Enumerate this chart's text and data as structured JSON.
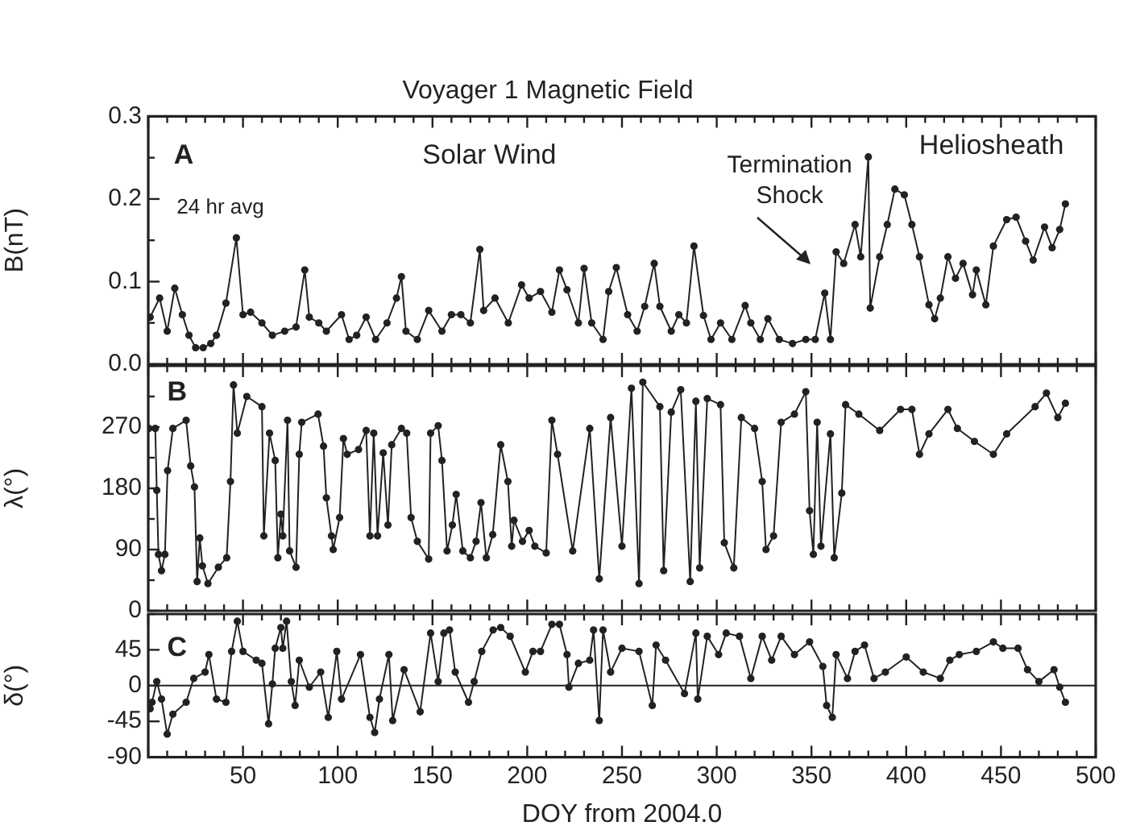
{
  "chart_data": [
    {
      "type": "line",
      "title": "Voyager 1 Magnetic Field",
      "ylabel": "B(nT)",
      "marker": "circle",
      "line_style": "solid",
      "tick_labels": "y",
      "xlim": [
        0,
        500
      ],
      "xticks": [
        {
          "value": 0,
          "label": null
        },
        {
          "value": 10,
          "label": null
        },
        {
          "value": 20,
          "label": null
        },
        {
          "value": 30,
          "label": null
        },
        {
          "value": 40,
          "label": null
        },
        {
          "value": 50,
          "label": null
        },
        {
          "value": 60,
          "label": null
        },
        {
          "value": 70,
          "label": null
        },
        {
          "value": 80,
          "label": null
        },
        {
          "value": 90,
          "label": null
        },
        {
          "value": 100,
          "label": null
        },
        {
          "value": 110,
          "label": null
        },
        {
          "value": 120,
          "label": null
        },
        {
          "value": 130,
          "label": null
        },
        {
          "value": 140,
          "label": null
        },
        {
          "value": 150,
          "label": null
        },
        {
          "value": 160,
          "label": null
        },
        {
          "value": 170,
          "label": null
        },
        {
          "value": 180,
          "label": null
        },
        {
          "value": 190,
          "label": null
        },
        {
          "value": 200,
          "label": null
        },
        {
          "value": 210,
          "label": null
        },
        {
          "value": 220,
          "label": null
        },
        {
          "value": 230,
          "label": null
        },
        {
          "value": 240,
          "label": null
        },
        {
          "value": 250,
          "label": null
        },
        {
          "value": 260,
          "label": null
        },
        {
          "value": 270,
          "label": null
        },
        {
          "value": 280,
          "label": null
        },
        {
          "value": 290,
          "label": null
        },
        {
          "value": 300,
          "label": null
        },
        {
          "value": 310,
          "label": null
        },
        {
          "value": 320,
          "label": null
        },
        {
          "value": 330,
          "label": null
        },
        {
          "value": 340,
          "label": null
        },
        {
          "value": 350,
          "label": null
        },
        {
          "value": 360,
          "label": null
        },
        {
          "value": 370,
          "label": null
        },
        {
          "value": 380,
          "label": null
        },
        {
          "value": 390,
          "label": null
        },
        {
          "value": 400,
          "label": null
        },
        {
          "value": 410,
          "label": null
        },
        {
          "value": 420,
          "label": null
        },
        {
          "value": 430,
          "label": null
        },
        {
          "value": 440,
          "label": null
        },
        {
          "value": 450,
          "label": null
        },
        {
          "value": 460,
          "label": null
        },
        {
          "value": 470,
          "label": null
        },
        {
          "value": 480,
          "label": null
        },
        {
          "value": 490,
          "label": null
        },
        {
          "value": 500,
          "label": null
        }
      ],
      "ylim": [
        0,
        0.3
      ],
      "yticks": [
        {
          "value": 0,
          "label": "0.0"
        },
        {
          "value": 0.05,
          "label": null
        },
        0.1,
        {
          "value": 0.15,
          "label": null
        },
        0.2,
        {
          "value": 0.25,
          "label": null
        },
        0.3
      ],
      "annotations": [
        "A",
        "Solar Wind",
        "Heliosheath",
        "24 hr avg",
        "Termination Shock"
      ],
      "series": [
        {
          "color": "#222222",
          "x": [
            1,
            6,
            10,
            14,
            18,
            21.5,
            25,
            29,
            33,
            36,
            41,
            46.5,
            50,
            54,
            60,
            65.5,
            72,
            78,
            82.6,
            85,
            90,
            94,
            102,
            106,
            110,
            115,
            120,
            126,
            131,
            133.6,
            136,
            142,
            148,
            155,
            160,
            165,
            170,
            175,
            177,
            183,
            190,
            197,
            201,
            207,
            213,
            217,
            221,
            227,
            230,
            234,
            240,
            243,
            247,
            253,
            258,
            262,
            267,
            270,
            276,
            280,
            284,
            288,
            293,
            297,
            302,
            308,
            315,
            318,
            323,
            327,
            333,
            340,
            347,
            352,
            357,
            360,
            363,
            367,
            373,
            376,
            380,
            381,
            386,
            390,
            394,
            399,
            403,
            407,
            412,
            415,
            418,
            422,
            426,
            430,
            435,
            437,
            442,
            446,
            453,
            458,
            463,
            467,
            473,
            477,
            481,
            484
          ],
          "values": [
            0.057,
            0.08,
            0.04,
            0.092,
            0.06,
            0.035,
            0.02,
            0.02,
            0.025,
            0.035,
            0.074,
            0.153,
            0.06,
            0.063,
            0.05,
            0.035,
            0.04,
            0.045,
            0.114,
            0.057,
            0.05,
            0.04,
            0.06,
            0.03,
            0.035,
            0.057,
            0.03,
            0.05,
            0.08,
            0.106,
            0.04,
            0.03,
            0.065,
            0.04,
            0.06,
            0.06,
            0.05,
            0.139,
            0.065,
            0.08,
            0.05,
            0.096,
            0.08,
            0.088,
            0.063,
            0.114,
            0.09,
            0.05,
            0.116,
            0.05,
            0.03,
            0.088,
            0.117,
            0.06,
            0.04,
            0.07,
            0.122,
            0.07,
            0.04,
            0.06,
            0.05,
            0.143,
            0.059,
            0.03,
            0.05,
            0.03,
            0.071,
            0.05,
            0.03,
            0.055,
            0.03,
            0.025,
            0.03,
            0.03,
            0.086,
            0.03,
            0.136,
            0.122,
            0.169,
            0.13,
            0.251,
            0.068,
            0.13,
            0.169,
            0.212,
            0.205,
            0.169,
            0.13,
            0.072,
            0.055,
            0.08,
            0.13,
            0.104,
            0.122,
            0.084,
            0.114,
            0.072,
            0.143,
            0.175,
            0.178,
            0.149,
            0.126,
            0.166,
            0.141,
            0.163,
            0.194
          ]
        }
      ]
    },
    {
      "type": "line",
      "ylabel": "λ(°)",
      "marker": "circle",
      "line_style": "solid",
      "tick_labels": "y",
      "xlim": [
        0,
        500
      ],
      "xticks": [
        {
          "value": 0,
          "label": null
        },
        {
          "value": 10,
          "label": null
        },
        {
          "value": 20,
          "label": null
        },
        {
          "value": 30,
          "label": null
        },
        {
          "value": 40,
          "label": null
        },
        {
          "value": 50,
          "label": null
        },
        {
          "value": 60,
          "label": null
        },
        {
          "value": 70,
          "label": null
        },
        {
          "value": 80,
          "label": null
        },
        {
          "value": 90,
          "label": null
        },
        {
          "value": 100,
          "label": null
        },
        {
          "value": 110,
          "label": null
        },
        {
          "value": 120,
          "label": null
        },
        {
          "value": 130,
          "label": null
        },
        {
          "value": 140,
          "label": null
        },
        {
          "value": 150,
          "label": null
        },
        {
          "value": 160,
          "label": null
        },
        {
          "value": 170,
          "label": null
        },
        {
          "value": 180,
          "label": null
        },
        {
          "value": 190,
          "label": null
        },
        {
          "value": 200,
          "label": null
        },
        {
          "value": 210,
          "label": null
        },
        {
          "value": 220,
          "label": null
        },
        {
          "value": 230,
          "label": null
        },
        {
          "value": 240,
          "label": null
        },
        {
          "value": 250,
          "label": null
        },
        {
          "value": 260,
          "label": null
        },
        {
          "value": 270,
          "label": null
        },
        {
          "value": 280,
          "label": null
        },
        {
          "value": 290,
          "label": null
        },
        {
          "value": 300,
          "label": null
        },
        {
          "value": 310,
          "label": null
        },
        {
          "value": 320,
          "label": null
        },
        {
          "value": 330,
          "label": null
        },
        {
          "value": 340,
          "label": null
        },
        {
          "value": 350,
          "label": null
        },
        {
          "value": 360,
          "label": null
        },
        {
          "value": 370,
          "label": null
        },
        {
          "value": 380,
          "label": null
        },
        {
          "value": 390,
          "label": null
        },
        {
          "value": 400,
          "label": null
        },
        {
          "value": 410,
          "label": null
        },
        {
          "value": 420,
          "label": null
        },
        {
          "value": 430,
          "label": null
        },
        {
          "value": 440,
          "label": null
        },
        {
          "value": 450,
          "label": null
        },
        {
          "value": 460,
          "label": null
        },
        {
          "value": 470,
          "label": null
        },
        {
          "value": 480,
          "label": null
        },
        {
          "value": 490,
          "label": null
        },
        {
          "value": 500,
          "label": null
        }
      ],
      "ylim": [
        0,
        360
      ],
      "yticks": [
        0,
        {
          "value": 45,
          "label": null
        },
        90,
        {
          "value": 135,
          "label": null
        },
        180,
        {
          "value": 225,
          "label": null
        },
        270,
        {
          "value": 315,
          "label": null
        },
        {
          "value": 360,
          "label": null
        }
      ],
      "annotations": [
        "B"
      ],
      "series": [
        {
          "color": "#222222",
          "x": [
            0.3,
            3.7,
            4.5,
            5.4,
            7,
            8.8,
            10.2,
            13,
            20,
            22.4,
            24.4,
            25.8,
            27.2,
            28.6,
            31.5,
            37,
            41.4,
            43.4,
            45,
            47,
            52,
            60,
            61,
            64,
            67,
            68.4,
            70,
            71,
            73.5,
            74.6,
            78,
            79.7,
            81,
            89.6,
            92.5,
            94,
            96.7,
            97.6,
            101,
            103,
            105,
            111,
            115,
            117,
            119,
            121,
            124,
            126.5,
            128.5,
            133.6,
            136.4,
            138.7,
            142,
            148,
            149,
            153,
            155,
            157.7,
            160.5,
            162.5,
            166,
            170,
            173,
            175.6,
            178.4,
            181.8,
            186,
            189.8,
            191.8,
            193,
            197.5,
            201,
            204,
            210,
            213,
            216,
            224,
            233,
            238,
            244,
            250,
            255,
            259,
            261,
            270,
            272,
            276,
            281,
            286,
            289,
            291,
            295,
            302,
            304,
            309,
            313,
            320,
            324,
            326,
            330,
            334,
            341,
            347,
            349,
            351,
            353,
            355,
            360,
            362,
            366,
            368,
            375,
            386,
            397,
            403,
            407,
            412,
            422,
            427,
            436,
            446,
            453,
            468,
            474,
            480,
            484
          ],
          "values": [
            268,
            268,
            177,
            83,
            59,
            83,
            206,
            268,
            280,
            213,
            182,
            43,
            107,
            66,
            40,
            64,
            78,
            190,
            332,
            261,
            315,
            300,
            110,
            261,
            221,
            78,
            142,
            110,
            280,
            88,
            64,
            230,
            277,
            289,
            242,
            166,
            110,
            90,
            137,
            253,
            230,
            237,
            265,
            110,
            261,
            110,
            232,
            126,
            244,
            268,
            261,
            137,
            102,
            76,
            261,
            272,
            221,
            88,
            126,
            171,
            88,
            78,
            102,
            159,
            78,
            112,
            244,
            190,
            95,
            133,
            102,
            118,
            95,
            85,
            280,
            230,
            88,
            268,
            47,
            284,
            95,
            327,
            40,
            336,
            300,
            59,
            292,
            325,
            43,
            308,
            63,
            312,
            303,
            100,
            63,
            284,
            268,
            190,
            90,
            110,
            277,
            289,
            322,
            147,
            83,
            277,
            95,
            260,
            78,
            173,
            303,
            289,
            265,
            296,
            296,
            230,
            260,
            296,
            268,
            249,
            230,
            260,
            300,
            320,
            284,
            305
          ]
        }
      ]
    },
    {
      "type": "line",
      "xlabel": "DOY from 2004.0",
      "ylabel": "δ(°)",
      "marker": "circle",
      "line_style": "solid",
      "xlim": [
        0,
        500
      ],
      "xticks": [
        {
          "value": 0,
          "label": null
        },
        {
          "value": 10,
          "label": null
        },
        {
          "value": 20,
          "label": null
        },
        {
          "value": 30,
          "label": null
        },
        {
          "value": 40,
          "label": null
        },
        50,
        {
          "value": 60,
          "label": null
        },
        {
          "value": 70,
          "label": null
        },
        {
          "value": 80,
          "label": null
        },
        {
          "value": 90,
          "label": null
        },
        100,
        {
          "value": 110,
          "label": null
        },
        {
          "value": 120,
          "label": null
        },
        {
          "value": 130,
          "label": null
        },
        {
          "value": 140,
          "label": null
        },
        150,
        {
          "value": 160,
          "label": null
        },
        {
          "value": 170,
          "label": null
        },
        {
          "value": 180,
          "label": null
        },
        {
          "value": 190,
          "label": null
        },
        200,
        {
          "value": 210,
          "label": null
        },
        {
          "value": 220,
          "label": null
        },
        {
          "value": 230,
          "label": null
        },
        {
          "value": 240,
          "label": null
        },
        250,
        {
          "value": 260,
          "label": null
        },
        {
          "value": 270,
          "label": null
        },
        {
          "value": 280,
          "label": null
        },
        {
          "value": 290,
          "label": null
        },
        300,
        {
          "value": 310,
          "label": null
        },
        {
          "value": 320,
          "label": null
        },
        {
          "value": 330,
          "label": null
        },
        {
          "value": 340,
          "label": null
        },
        350,
        {
          "value": 360,
          "label": null
        },
        {
          "value": 370,
          "label": null
        },
        {
          "value": 380,
          "label": null
        },
        {
          "value": 390,
          "label": null
        },
        400,
        {
          "value": 410,
          "label": null
        },
        {
          "value": 420,
          "label": null
        },
        {
          "value": 430,
          "label": null
        },
        {
          "value": 440,
          "label": null
        },
        450,
        {
          "value": 460,
          "label": null
        },
        {
          "value": 470,
          "label": null
        },
        {
          "value": 480,
          "label": null
        },
        {
          "value": 490,
          "label": null
        },
        500
      ],
      "ylim": [
        -90,
        90
      ],
      "yticks": [
        -90,
        -45,
        0,
        45,
        {
          "value": 90,
          "label": null
        }
      ],
      "ref_lines": [
        {
          "axis": "y",
          "value": 0
        }
      ],
      "annotations": [
        "C"
      ],
      "series": [
        {
          "color": "#222222",
          "x": [
            1,
            2,
            4.5,
            7,
            10,
            13,
            20,
            24,
            30,
            32,
            36,
            41,
            44,
            47,
            50,
            57,
            60,
            63.5,
            65.5,
            67,
            70,
            71,
            73,
            75.5,
            77.5,
            79.7,
            85,
            91,
            95,
            99.5,
            102,
            112,
            117,
            119.5,
            122,
            127,
            129,
            135,
            143.5,
            149,
            153,
            156,
            159,
            162,
            169,
            172,
            176,
            182,
            186,
            191,
            199,
            203,
            207,
            213,
            217,
            221,
            222,
            227,
            233,
            235,
            238,
            240,
            244,
            250,
            259,
            266,
            268,
            273,
            283,
            289,
            290,
            295,
            301,
            305,
            312,
            318,
            324,
            329,
            334,
            341,
            349,
            356,
            358,
            361,
            363,
            369,
            373,
            378,
            383,
            389,
            400,
            409,
            418,
            423,
            428,
            437,
            446,
            451,
            459,
            464,
            470,
            478,
            481,
            484
          ],
          "values": [
            -29,
            -21,
            5,
            -17,
            -61,
            -36,
            -21,
            9,
            17,
            39,
            -17,
            -21,
            43,
            81,
            43,
            32,
            28,
            -48,
            2,
            47,
            73,
            47,
            81,
            5,
            -25,
            32,
            -2,
            17,
            -40,
            43,
            -17,
            39,
            -40,
            -59,
            -17,
            39,
            -44,
            20,
            -33,
            66,
            5,
            66,
            70,
            17,
            -21,
            5,
            43,
            70,
            73,
            62,
            17,
            43,
            43,
            77,
            77,
            39,
            -2,
            28,
            32,
            70,
            -44,
            70,
            17,
            47,
            43,
            -25,
            51,
            32,
            -10,
            66,
            -17,
            62,
            39,
            66,
            62,
            9,
            62,
            32,
            62,
            39,
            55,
            24,
            -25,
            -40,
            39,
            9,
            43,
            51,
            9,
            17,
            36,
            17,
            9,
            32,
            39,
            43,
            55,
            47,
            47,
            20,
            5,
            20,
            -2,
            -21
          ]
        }
      ]
    }
  ]
}
